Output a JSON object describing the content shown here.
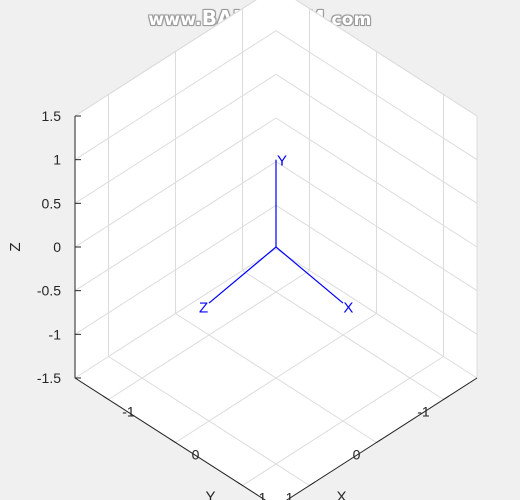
{
  "watermark": {
    "pre": "www.",
    "main": "BANDICAM",
    "post": ".com"
  },
  "chart_data": {
    "type": "line",
    "title": "",
    "xlabel": "X",
    "ylabel": "Y",
    "zlabel": "Z",
    "view": "3d-default",
    "grid": true,
    "xlim": [
      -1.5,
      1.5
    ],
    "ylim": [
      -1.5,
      1.5
    ],
    "zlim": [
      -1.5,
      1.5
    ],
    "xticks": [
      -1,
      0,
      1
    ],
    "xtick_labels": [
      "-1",
      "0",
      "1"
    ],
    "yticks": [
      -1,
      0,
      1
    ],
    "ytick_labels": [
      "-1",
      "0",
      "1"
    ],
    "zticks": [
      -1.5,
      -1,
      -0.5,
      0,
      0.5,
      1,
      1.5
    ],
    "ztick_labels": [
      "-1.5",
      "-1",
      "-0.5",
      "0",
      "0.5",
      "1",
      "1.5"
    ],
    "series": [
      {
        "name": "X",
        "color": "#0000ff",
        "from": [
          0,
          0,
          0
        ],
        "to": [
          0,
          1,
          -0.15
        ]
      },
      {
        "name": "Y",
        "color": "#0000ff",
        "from": [
          0,
          0,
          0
        ],
        "to": [
          0,
          0,
          1
        ]
      },
      {
        "name": "Z",
        "color": "#0000ff",
        "from": [
          0,
          0,
          0
        ],
        "to": [
          1,
          0,
          -0.15
        ]
      }
    ],
    "colors": {
      "background": "#f0f0f0",
      "axes_line": "#262626",
      "grid": "#dcdcdc",
      "triad": "#0000ff"
    }
  }
}
